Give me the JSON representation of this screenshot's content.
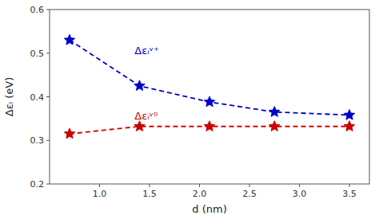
{
  "chart_data": {
    "type": "line",
    "x": [
      0.7,
      1.4,
      2.1,
      2.75,
      3.5
    ],
    "series": [
      {
        "color": "#0000cc",
        "values": [
          0.53,
          0.425,
          0.388,
          0.365,
          0.358
        ],
        "marker": "star",
        "line_style": "dashed"
      },
      {
        "color": "#cc0000",
        "values": [
          0.315,
          0.332,
          0.332,
          0.332,
          0.332
        ],
        "marker": "star",
        "line_style": "dashed"
      }
    ],
    "x_label": "d (nm)",
    "y_label": "Δεᵢ (eV)",
    "xlim": [
      0.5,
      3.7
    ],
    "ylim": [
      0.2,
      0.6
    ],
    "xticks": [
      {
        "value": 1,
        "label": "1.0"
      },
      1.5,
      {
        "value": 2,
        "label": "2.0"
      },
      2.5,
      {
        "value": 3,
        "label": "3.0"
      },
      3.5
    ],
    "yticks": [
      0.2,
      0.3,
      0.4,
      0.5,
      0.6
    ],
    "annotations": [
      {
        "text": "Δεᵢᵛ⁺",
        "x": 1.35,
        "y": 0.505,
        "color": "#0000cc"
      },
      {
        "text": "Δεᵢᵛ⁰",
        "x": 1.35,
        "y": 0.355,
        "color": "#cc0000"
      }
    ],
    "grid": false
  }
}
